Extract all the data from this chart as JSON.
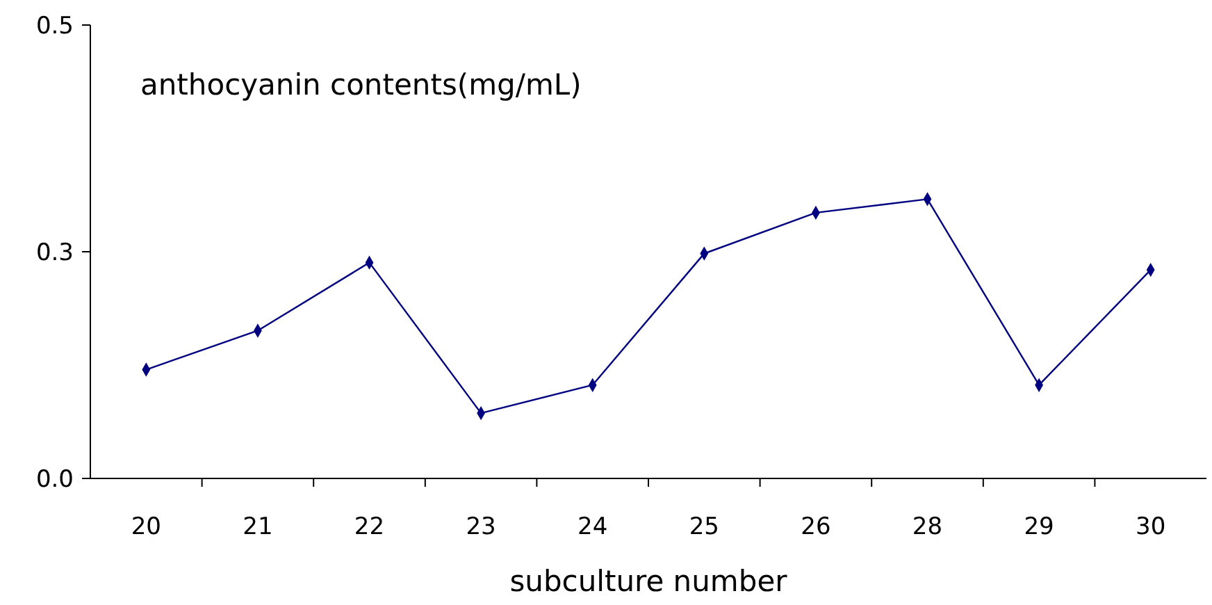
{
  "chart_data": {
    "type": "line",
    "ylabel": "anthocyanin contents(mg/mL)",
    "xlabel": "subculture number",
    "categories": [
      "20",
      "21",
      "22",
      "23",
      "24",
      "25",
      "26",
      "28",
      "29",
      "30"
    ],
    "series": [
      {
        "color": "#000080",
        "values": [
          0.12,
          0.163,
          0.238,
          0.072,
          0.103,
          0.248,
          0.293,
          0.308,
          0.103,
          0.23
        ]
      }
    ],
    "ylim": [
      0,
      0.5
    ],
    "yticks": [
      {
        "value": 0,
        "label": "0.0"
      },
      {
        "value": 0.25,
        "label": "0.3"
      },
      {
        "value": 0.5,
        "label": "0.5"
      }
    ],
    "marker": "diamond",
    "line_style": "solid",
    "grid": false
  }
}
